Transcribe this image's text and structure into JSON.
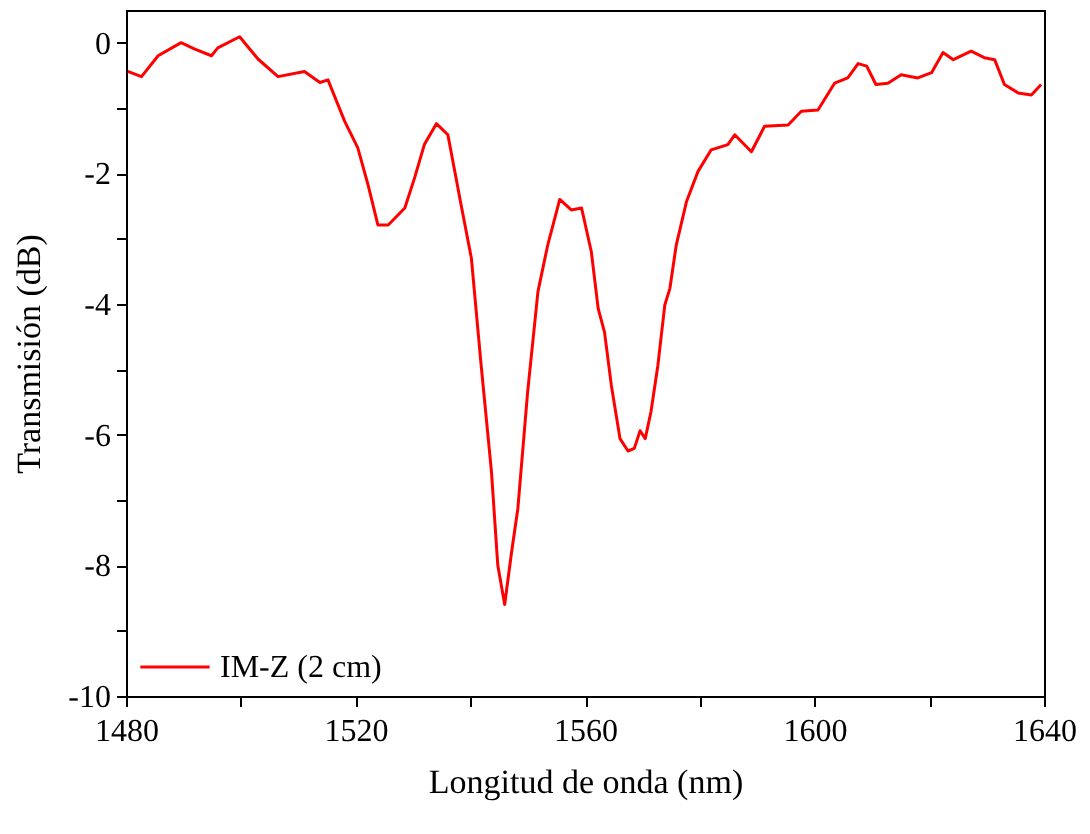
{
  "chart_data": {
    "type": "line",
    "xlabel": "Longitud de onda (nm)",
    "ylabel": "Transmisión (dB)",
    "xlim": [
      1480,
      1640
    ],
    "ylim": [
      -10,
      0.5
    ],
    "xticks": [
      1480,
      {
        "value": 1500,
        "label": null
      },
      1520,
      {
        "value": 1540,
        "label": null
      },
      1560,
      {
        "value": 1580,
        "label": null
      },
      1600,
      {
        "value": 1620,
        "label": null
      },
      1640
    ],
    "yticks": [
      -10,
      {
        "value": -9,
        "label": null
      },
      -8,
      {
        "value": -7,
        "label": null
      },
      -6,
      {
        "value": -5,
        "label": null
      },
      -4,
      {
        "value": -3,
        "label": null
      },
      -2,
      {
        "value": -1,
        "label": null
      },
      0
    ],
    "grid": false,
    "legend": "bottom left",
    "marker": "none",
    "line_style": "solid",
    "series": [
      {
        "name": "IM-Z (2 cm)",
        "color": "#ff0000",
        "x": [
          1480.3,
          1482.7,
          1485.6,
          1489.6,
          1492,
          1494.9,
          1496,
          1499.8,
          1503,
          1506.5,
          1511.1,
          1513.8,
          1515.2,
          1518.1,
          1520.4,
          1522.2,
          1523.9,
          1525.7,
          1528.6,
          1530.3,
          1532,
          1534.1,
          1536.1,
          1538.4,
          1540.2,
          1541.9,
          1543.7,
          1544.8,
          1546,
          1547.2,
          1548.3,
          1550,
          1551.8,
          1553.5,
          1555.6,
          1557.6,
          1559.4,
          1561.1,
          1562.3,
          1563.4,
          1564.6,
          1566.1,
          1567.5,
          1568.6,
          1569.6,
          1570.5,
          1571.5,
          1572.7,
          1573.9,
          1574.8,
          1575.9,
          1577.7,
          1579.7,
          1582,
          1584.9,
          1586.1,
          1589,
          1591.3,
          1595.4,
          1597.7,
          1600.6,
          1603.5,
          1605.8,
          1607.6,
          1609.1,
          1610.7,
          1612.8,
          1615.1,
          1618,
          1620.4,
          1622.4,
          1624.2,
          1627.3,
          1629.6,
          1631.4,
          1633.1,
          1635.5,
          1637.8,
          1639.5
        ],
        "values": [
          -0.44,
          -0.52,
          -0.2,
          0,
          -0.1,
          -0.2,
          -0.08,
          0.09,
          -0.25,
          -0.52,
          -0.44,
          -0.61,
          -0.57,
          -1.2,
          -1.61,
          -2.18,
          -2.79,
          -2.79,
          -2.53,
          -2.07,
          -1.56,
          -1.24,
          -1.41,
          -2.48,
          -3.3,
          -4.94,
          -6.57,
          -8.0,
          -8.6,
          -7.8,
          -7.13,
          -5.35,
          -3.81,
          -3.1,
          -2.4,
          -2.56,
          -2.53,
          -3.2,
          -4.07,
          -4.43,
          -5.25,
          -6.06,
          -6.25,
          -6.21,
          -5.94,
          -6.06,
          -5.65,
          -4.94,
          -4.02,
          -3.76,
          -3.1,
          -2.43,
          -1.97,
          -1.64,
          -1.56,
          -1.41,
          -1.67,
          -1.28,
          -1.26,
          -1.05,
          -1.03,
          -0.62,
          -0.54,
          -0.32,
          -0.36,
          -0.64,
          -0.62,
          -0.49,
          -0.54,
          -0.46,
          -0.15,
          -0.26,
          -0.13,
          -0.23,
          -0.26,
          -0.64,
          -0.77,
          -0.8,
          -0.64
        ]
      }
    ]
  }
}
